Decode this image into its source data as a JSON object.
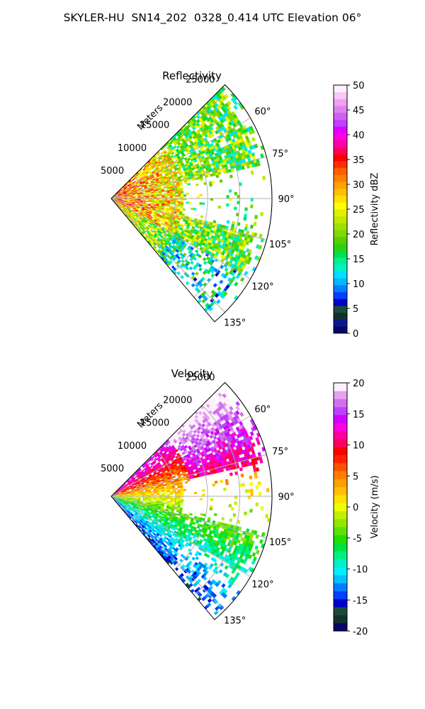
{
  "figure": {
    "title": "SKYLER-HU  SN14_202  0328_0.414 UTC Elevation 06°"
  },
  "chart_data": [
    {
      "type": "heatmap",
      "subtype": "polar-sector (radar PPI)",
      "title": "Reflectivity",
      "range_axis": {
        "label": "Meters",
        "ticks": [
          5000,
          10000,
          15000,
          20000,
          25000
        ],
        "max": 25000
      },
      "azimuth_axis": {
        "tick_labels": [
          "60°",
          "75°",
          "90°",
          "105°",
          "120°",
          "135°"
        ],
        "range_deg": [
          45,
          140
        ]
      },
      "grid": true,
      "colorbar": {
        "label": "Reflectivity dBZ",
        "min": 0,
        "max": 50,
        "ticks": [
          0,
          5,
          10,
          15,
          20,
          25,
          30,
          35,
          40,
          45,
          50
        ],
        "colors": [
          "#05056a",
          "#0a1a8a",
          "#12302f",
          "#1b4a3a",
          "#0000c8",
          "#0040ff",
          "#0080ff",
          "#00b8ff",
          "#00e0ff",
          "#00f0c8",
          "#00f090",
          "#00e050",
          "#30d010",
          "#58d000",
          "#80d800",
          "#a0e000",
          "#c0e800",
          "#e0f000",
          "#ffff00",
          "#ffe000",
          "#ffc000",
          "#ffa000",
          "#ff8000",
          "#ff6000",
          "#ff3000",
          "#ff0000",
          "#ff0060",
          "#ff00a0",
          "#ff00e0",
          "#e000ff",
          "#c040ff",
          "#d060f0",
          "#e080f0",
          "#f0a0f0",
          "#f8c8f8",
          "#fff0ff"
        ]
      }
    },
    {
      "type": "heatmap",
      "subtype": "polar-sector (radar PPI)",
      "title": "Velocity",
      "range_axis": {
        "label": "Meters",
        "ticks": [
          5000,
          10000,
          15000,
          20000,
          25000
        ],
        "max": 25000
      },
      "azimuth_axis": {
        "tick_labels": [
          "60°",
          "75°",
          "90°",
          "105°",
          "120°",
          "135°"
        ],
        "range_deg": [
          45,
          140
        ]
      },
      "grid": true,
      "colorbar": {
        "label": "Velocity (m/s)",
        "min": -20,
        "max": 20,
        "ticks": [
          -20,
          -15,
          -10,
          -5,
          0,
          5,
          10,
          15,
          20
        ],
        "colors": [
          "#05056a",
          "#12302f",
          "#1b4a3a",
          "#0000c8",
          "#0040ff",
          "#0080ff",
          "#00c0ff",
          "#00f0ff",
          "#00f0c8",
          "#00f080",
          "#00e040",
          "#20e000",
          "#60e000",
          "#90e800",
          "#c0f000",
          "#f0ff00",
          "#ffe000",
          "#ffc000",
          "#ffa000",
          "#ff8000",
          "#ff5000",
          "#ff2000",
          "#ff0000",
          "#ff0060",
          "#ff00a0",
          "#ff00e0",
          "#d000ff",
          "#c040ff",
          "#d070f0",
          "#e8a0f0",
          "#fff0ff"
        ]
      }
    }
  ]
}
